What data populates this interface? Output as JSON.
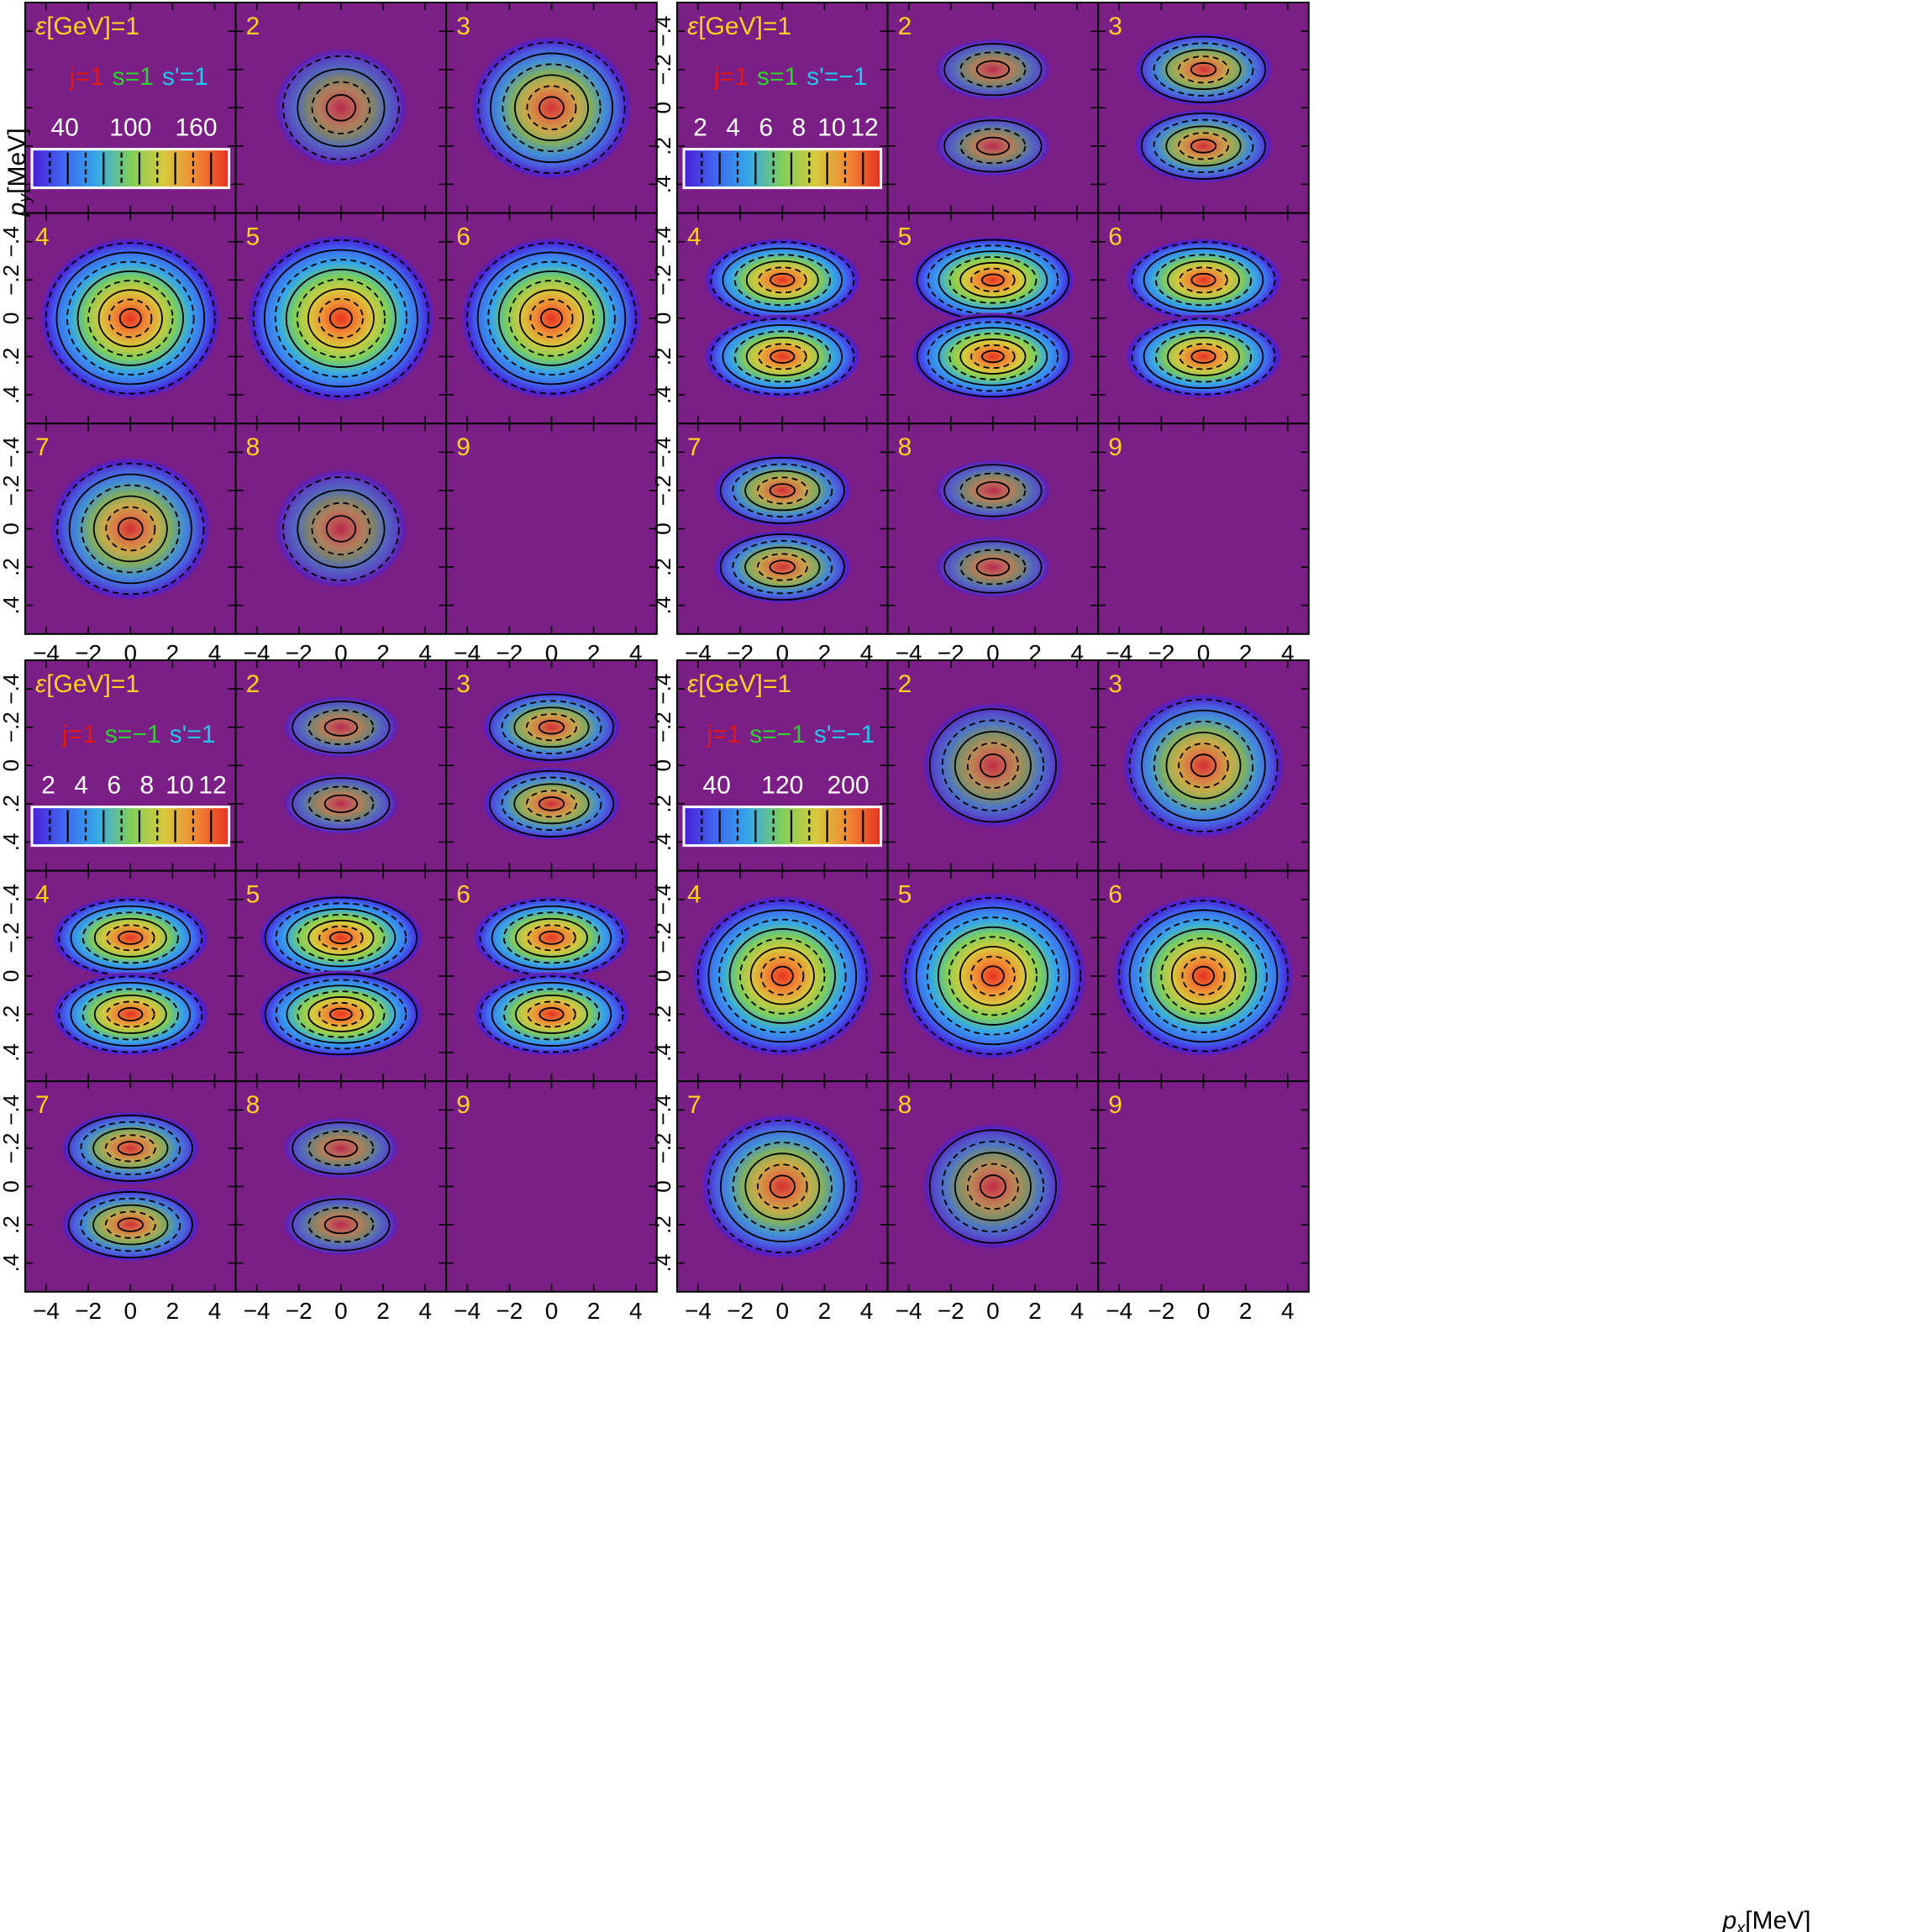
{
  "figure": {
    "axis_labels": {
      "y": {
        "main": "p",
        "sub": "y",
        "unit": "[MeV]"
      },
      "x": {
        "main": "p",
        "sub": "x",
        "unit": "[MeV]"
      }
    },
    "x_ticks": [
      "−4",
      "−2",
      "0",
      "2",
      "4"
    ],
    "y_ticks": [
      ".4",
      ".2",
      "0",
      "−.2",
      "−.4"
    ]
  },
  "chart_data": {
    "type": "heatmap",
    "description_units": {
      "x": "px [MeV]",
      "y": "py [MeV]"
    },
    "x_range": [
      -5,
      5
    ],
    "y_range": [
      -0.55,
      0.55
    ],
    "x_ticks": [
      -4,
      -2,
      0,
      2,
      4
    ],
    "y_ticks": [
      -0.4,
      -0.2,
      0,
      0.2,
      0.4
    ],
    "panel_labels": [
      "2",
      "3",
      "4",
      "5",
      "6",
      "7",
      "8",
      "9"
    ],
    "colormap": [
      "#4a1fd6",
      "#3e6af2",
      "#36a8e6",
      "#7ecf5a",
      "#d8c93c",
      "#f08a34",
      "#e83222"
    ],
    "background_color": "#7b1f86",
    "label_color": "#ffd21f",
    "blocks": [
      {
        "id": "top-left",
        "header": "ε[GeV]=1",
        "j": "j=1",
        "s": "s=1",
        "sp": "s'=1",
        "shape": "single",
        "colorbar_ticks": [
          "40",
          "100",
          "160"
        ],
        "peak": [
          0.02,
          0.35,
          0.68,
          0.92,
          1.0,
          0.92,
          0.68,
          0.35,
          0.02
        ]
      },
      {
        "id": "top-right",
        "header": "ε[GeV]=1",
        "j": "j=1",
        "s": "s=1",
        "sp": "s'=−1",
        "shape": "double",
        "colorbar_ticks": [
          "2",
          "4",
          "6",
          "8",
          "10",
          "12"
        ],
        "peak": [
          0.0,
          0.35,
          0.65,
          0.9,
          1.0,
          0.9,
          0.65,
          0.35,
          0.0
        ]
      },
      {
        "id": "bottom-left",
        "header": "ε[GeV]=1",
        "j": "j=1",
        "s": "s=−1",
        "sp": "s'=1",
        "shape": "double",
        "colorbar_ticks": [
          "2",
          "4",
          "6",
          "8",
          "10",
          "12"
        ],
        "peak": [
          0.0,
          0.35,
          0.65,
          0.9,
          1.0,
          0.9,
          0.65,
          0.35,
          0.0
        ]
      },
      {
        "id": "bottom-right",
        "header": "ε[GeV]=1",
        "j": "j=1",
        "s": "s=−1",
        "sp": "s'=−1",
        "shape": "single",
        "colorbar_ticks": [
          "40",
          "120",
          "200"
        ],
        "peak": [
          0.02,
          0.45,
          0.7,
          0.92,
          1.0,
          0.92,
          0.7,
          0.45,
          0.02
        ]
      }
    ]
  }
}
